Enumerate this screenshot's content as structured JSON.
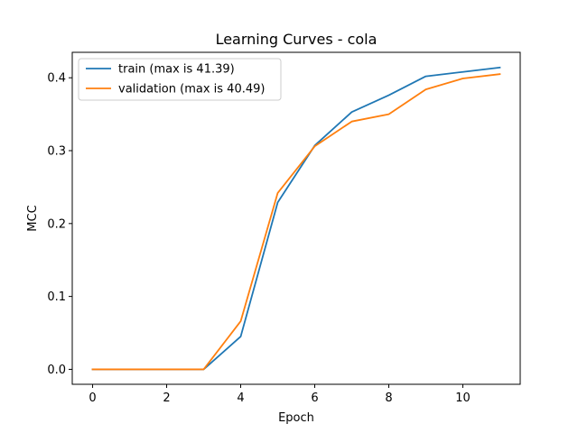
{
  "chart_data": {
    "type": "line",
    "title": "Learning Curves - cola",
    "xlabel": "Epoch",
    "ylabel": "MCC",
    "x": [
      0,
      1,
      2,
      3,
      4,
      5,
      6,
      7,
      8,
      9,
      10,
      11
    ],
    "xlim": [
      -0.55,
      11.55
    ],
    "ylim": [
      -0.0205,
      0.4349
    ],
    "xticks": [
      0,
      2,
      4,
      6,
      8,
      10
    ],
    "xtick_labels": [
      "0",
      "2",
      "4",
      "6",
      "8",
      "10"
    ],
    "yticks": [
      0.0,
      0.1,
      0.2,
      0.3,
      0.4
    ],
    "ytick_labels": [
      "0.0",
      "0.1",
      "0.2",
      "0.3",
      "0.4"
    ],
    "grid": false,
    "legend_position": "top-left",
    "series": [
      {
        "name": "train (max is 41.39)",
        "color": "#1f77b4",
        "values": [
          0.0,
          0.0,
          0.0,
          0.0,
          0.045,
          0.229,
          0.307,
          0.353,
          0.376,
          0.402,
          0.408,
          0.414
        ]
      },
      {
        "name": "validation (max is 40.49)",
        "color": "#ff7f0e",
        "values": [
          0.0,
          0.0,
          0.0,
          0.0,
          0.066,
          0.242,
          0.306,
          0.34,
          0.35,
          0.384,
          0.399,
          0.405
        ]
      }
    ]
  }
}
